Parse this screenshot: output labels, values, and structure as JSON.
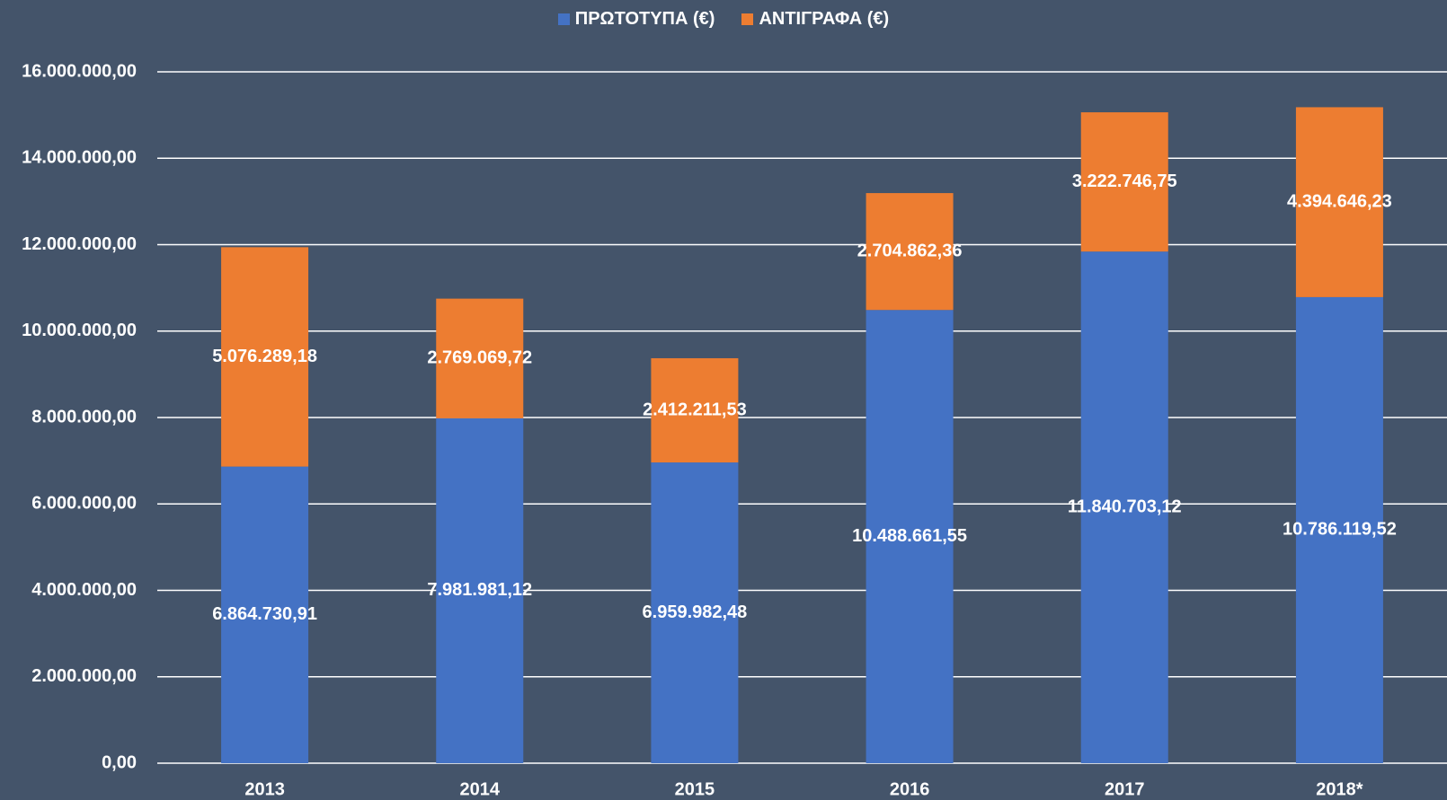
{
  "chart_data": {
    "type": "stacked_bar",
    "categories": [
      "2013",
      "2014",
      "2015",
      "2016",
      "2017",
      "2018*"
    ],
    "series": [
      {
        "name": "ΠΡΩΤΟΤΥΠΑ  (€)",
        "color": "#4472c4",
        "values": [
          6864730.91,
          7981981.12,
          6959982.48,
          10488661.55,
          11840703.12,
          10786119.52
        ],
        "value_labels": [
          "6.864.730,91",
          "7.981.981,12",
          "6.959.982,48",
          "10.488.661,55",
          "11.840.703,12",
          "10.786.119,52"
        ]
      },
      {
        "name": "ΑΝΤΙΓΡΑΦΑ  (€)",
        "color": "#ed7d31",
        "values": [
          5076289.18,
          2769069.72,
          2412211.53,
          2704862.36,
          3222746.75,
          4394646.23
        ],
        "value_labels": [
          "5.076.289,18",
          "2.769.069,72",
          "2.412.211,53",
          "2.704.862,36",
          "3.222.746,75",
          "4.394.646,23"
        ]
      }
    ],
    "ylim": [
      0,
      16000000
    ],
    "yticks": [
      {
        "value": 0,
        "label": "0,00"
      },
      {
        "value": 2000000,
        "label": "2.000.000,00"
      },
      {
        "value": 4000000,
        "label": "4.000.000,00"
      },
      {
        "value": 6000000,
        "label": "6.000.000,00"
      },
      {
        "value": 8000000,
        "label": "8.000.000,00"
      },
      {
        "value": 10000000,
        "label": "10.000.000,00"
      },
      {
        "value": 12000000,
        "label": "12.000.000,00"
      },
      {
        "value": 14000000,
        "label": "14.000.000,00"
      },
      {
        "value": 16000000,
        "label": "16.000.000,00"
      }
    ],
    "grid": true,
    "legend": "top"
  }
}
